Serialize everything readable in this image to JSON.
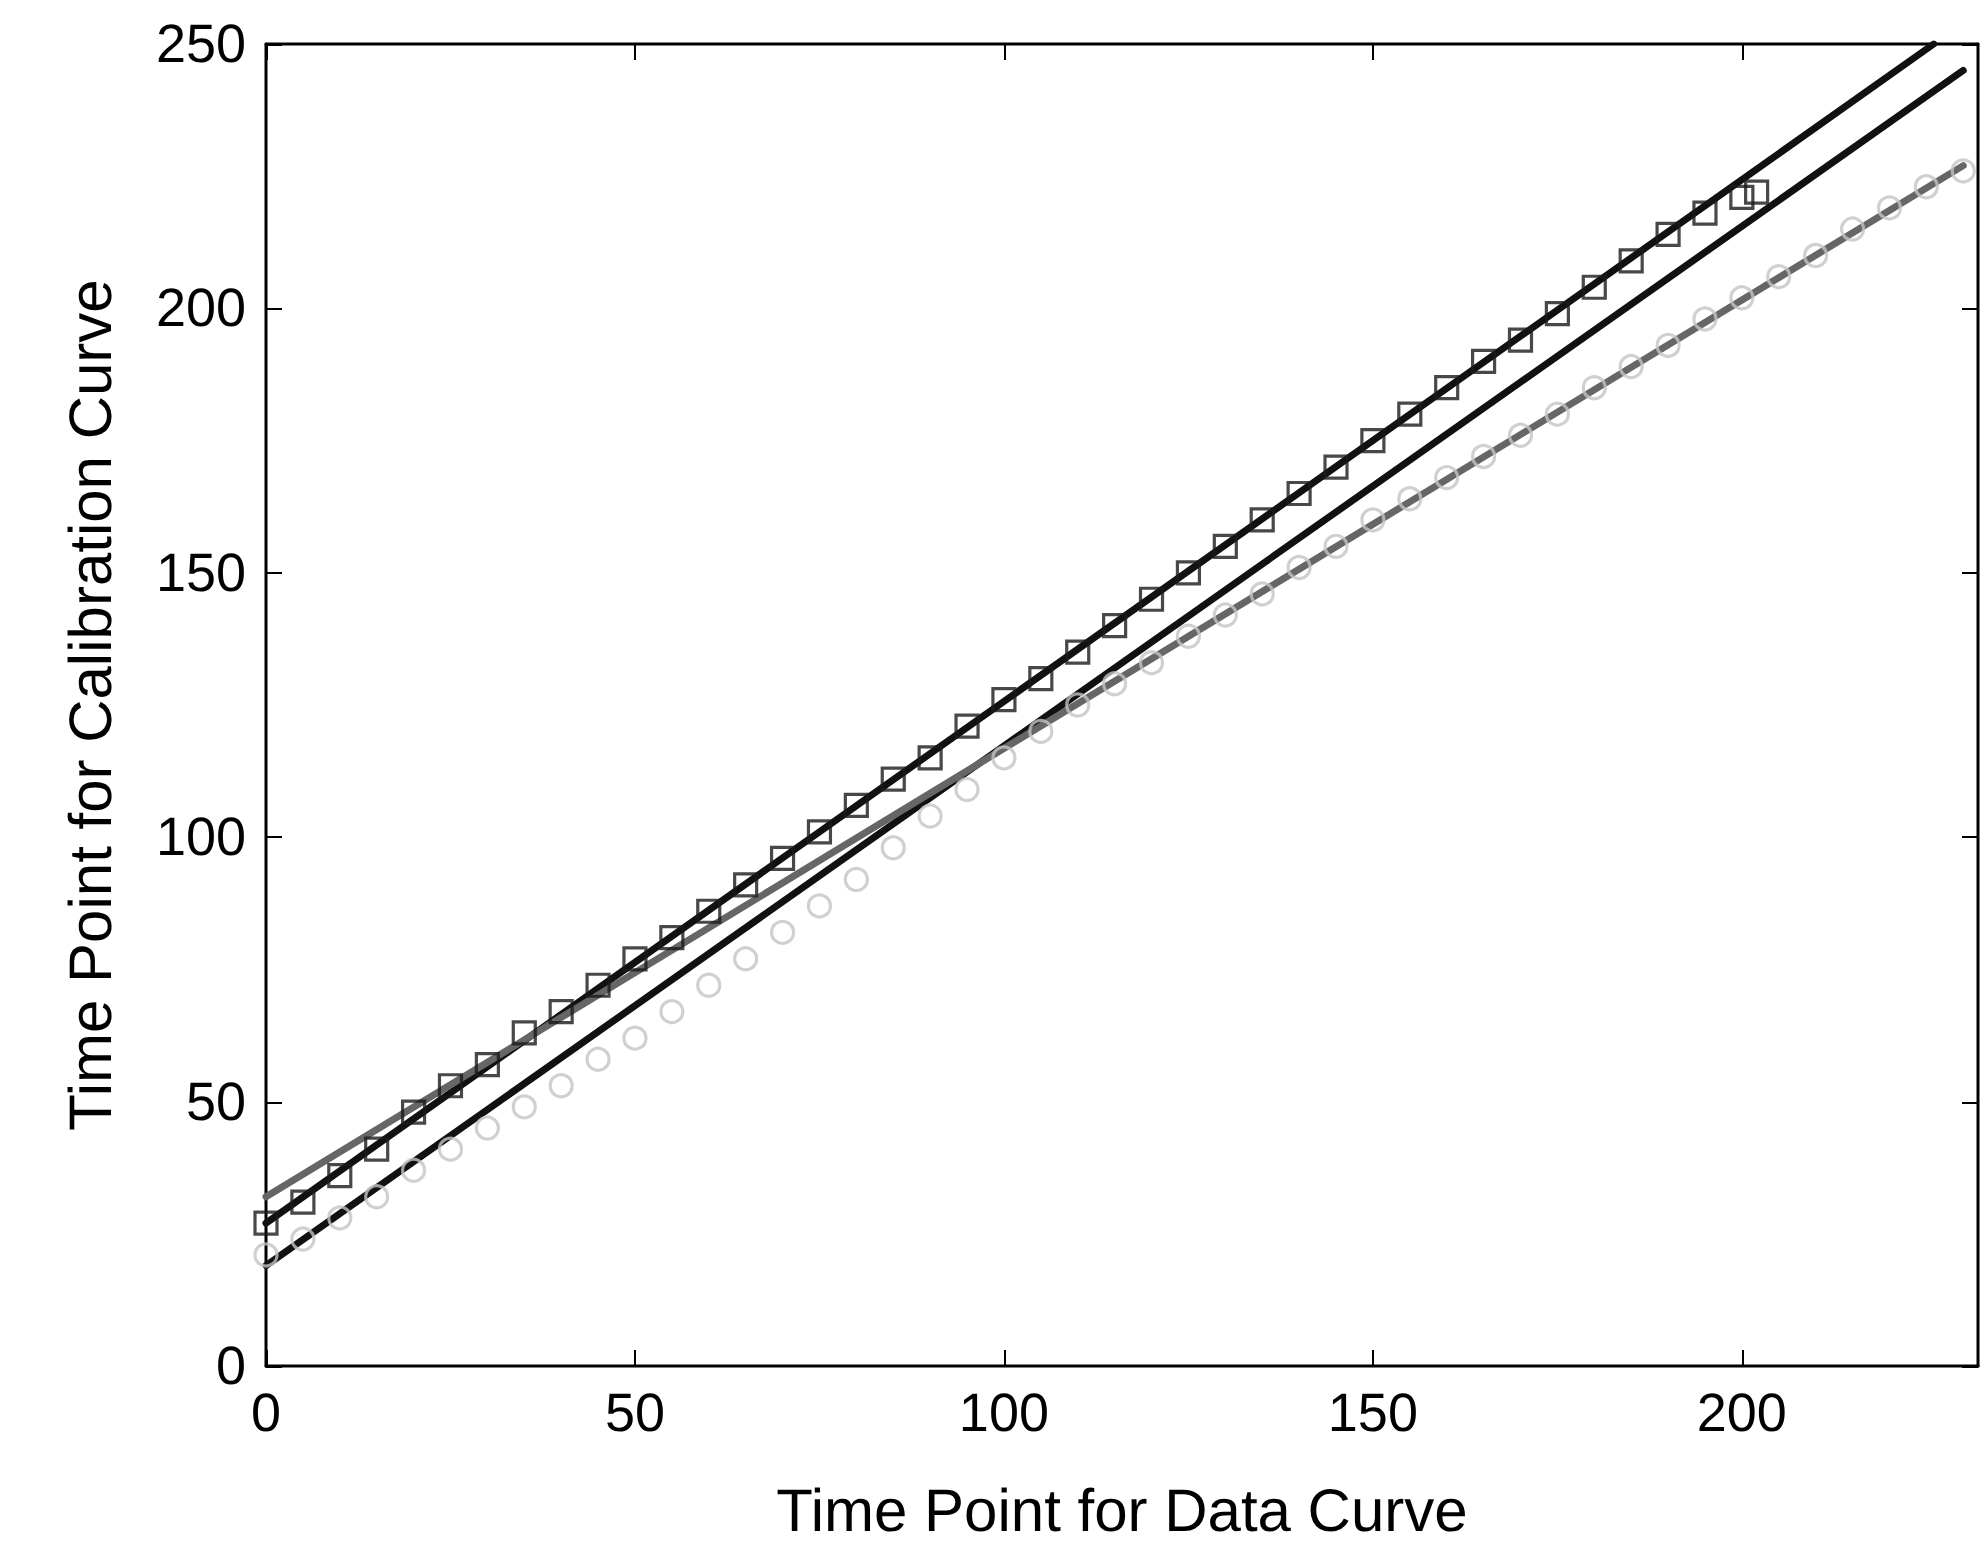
{
  "chart_data": {
    "type": "scatter",
    "xlabel": "Time Point for Data Curve",
    "ylabel": "Time Point for Calibration Curve",
    "xlim": [
      0,
      232
    ],
    "ylim": [
      0,
      250
    ],
    "xticks": [
      0,
      50,
      100,
      150,
      200
    ],
    "yticks": [
      0,
      50,
      100,
      150,
      200,
      250
    ],
    "grid": false,
    "series": [
      {
        "marker": "square",
        "color": "#1a1a1a",
        "x": [
          0,
          5,
          10,
          15,
          20,
          25,
          30,
          35,
          40,
          45,
          50,
          55,
          60,
          65,
          70,
          75,
          80,
          85,
          90,
          95,
          100,
          105,
          110,
          115,
          120,
          125,
          130,
          135,
          140,
          145,
          150,
          155,
          160,
          165,
          170,
          175,
          180,
          185,
          190,
          195,
          200,
          202
        ],
        "values": [
          27,
          31,
          36,
          41,
          48,
          53,
          57,
          63,
          67,
          72,
          77,
          81,
          86,
          91,
          96,
          101,
          106,
          111,
          115,
          121,
          126,
          130,
          135,
          140,
          145,
          150,
          155,
          160,
          165,
          170,
          175,
          180,
          185,
          190,
          194,
          199,
          204,
          209,
          214,
          218,
          221,
          222
        ]
      },
      {
        "marker": "circle",
        "color": "#c4c4c4",
        "x": [
          0,
          5,
          10,
          15,
          20,
          25,
          30,
          35,
          40,
          45,
          50,
          55,
          60,
          65,
          70,
          75,
          80,
          85,
          90,
          95,
          100,
          105,
          110,
          115,
          120,
          125,
          130,
          135,
          140,
          145,
          150,
          155,
          160,
          165,
          170,
          175,
          180,
          185,
          190,
          195,
          200,
          205,
          210,
          215,
          220,
          225,
          230
        ],
        "values": [
          21,
          24,
          28,
          32,
          37,
          41,
          45,
          49,
          53,
          58,
          62,
          67,
          72,
          77,
          82,
          87,
          92,
          98,
          104,
          109,
          115,
          120,
          125,
          129,
          133,
          138,
          142,
          146,
          151,
          155,
          160,
          164,
          168,
          172,
          176,
          180,
          185,
          189,
          193,
          198,
          202,
          206,
          210,
          215,
          219,
          223,
          226
        ]
      },
      {
        "type": "line",
        "marker": "none",
        "color": "#111111",
        "x": [
          0,
          226
        ],
        "values": [
          27,
          250
        ]
      },
      {
        "type": "line",
        "marker": "none",
        "color": "#111111",
        "x": [
          0,
          230
        ],
        "values": [
          19,
          245
        ]
      },
      {
        "type": "line",
        "marker": "none",
        "color": "#666666",
        "x": [
          0,
          230
        ],
        "values": [
          32,
          227
        ]
      }
    ]
  }
}
